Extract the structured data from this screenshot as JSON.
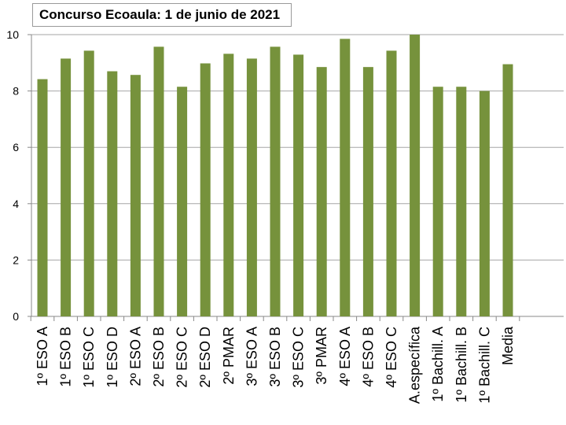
{
  "chart_data": {
    "type": "bar",
    "title": "Concurso Ecoaula: 1 de junio de 2021",
    "xlabel": "",
    "ylabel": "",
    "ylim": [
      0,
      10
    ],
    "yticks": [
      0,
      2,
      4,
      6,
      8,
      10
    ],
    "grid": true,
    "bar_color": "#76923C",
    "categories": [
      "1º ESO A",
      "1º ESO B",
      "1º ESO C",
      "1º ESO D",
      "2º ESO A",
      "2º ESO B",
      "2º ESO C",
      "2º ESO D",
      "2º PMAR",
      "3º ESO A",
      "3º ESO B",
      "3º ESO C",
      "3º PMAR",
      "4º ESO A",
      "4º ESO B",
      "4º ESO C",
      "A.específica",
      "1º Bachill. A",
      "1º Bachill. B",
      "1º Bachill. C",
      "Media"
    ],
    "values": [
      8.42,
      9.15,
      9.43,
      8.7,
      8.57,
      9.57,
      8.15,
      8.98,
      9.32,
      9.15,
      9.57,
      9.29,
      8.85,
      9.85,
      8.85,
      9.43,
      10.0,
      8.15,
      8.15,
      8.0,
      8.95
    ]
  }
}
